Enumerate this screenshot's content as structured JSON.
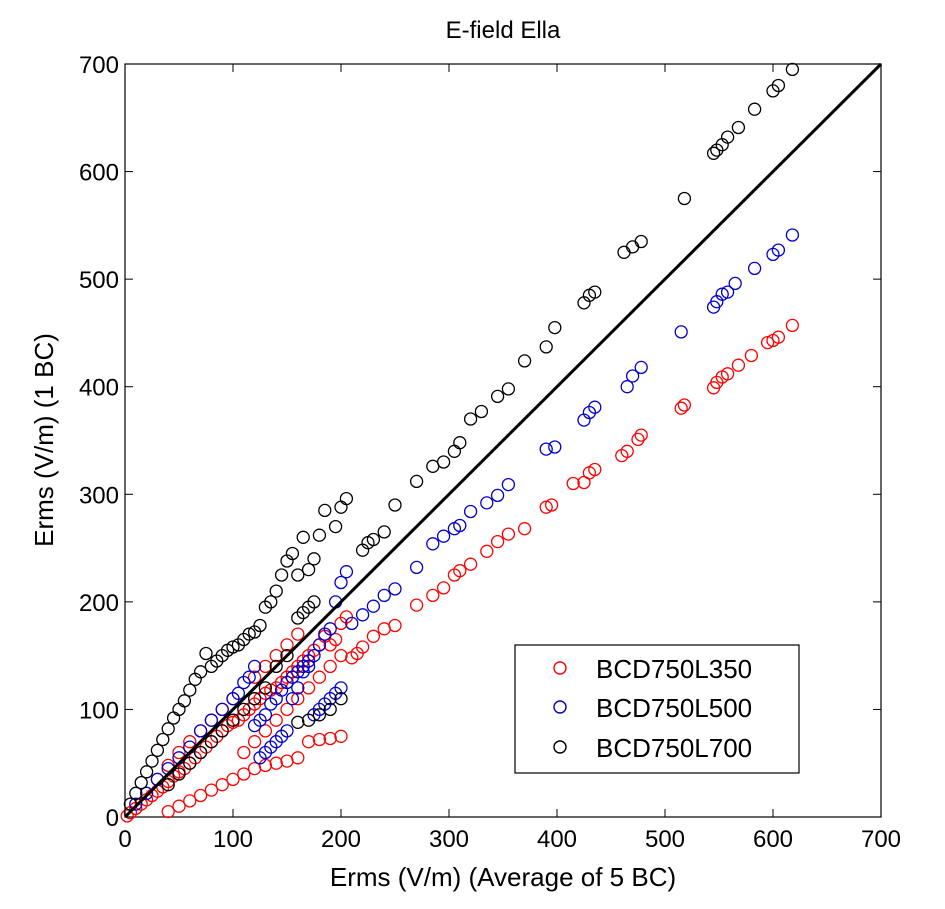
{
  "chart_data": {
    "type": "scatter",
    "title": "E-field Ella",
    "xlabel": "Erms (V/m) (Average of 5 BC)",
    "ylabel": "Erms (V/m) (1 BC)",
    "xlim": [
      0,
      700
    ],
    "ylim": [
      0,
      700
    ],
    "xticks": [
      0,
      100,
      200,
      300,
      400,
      500,
      600,
      700
    ],
    "yticks": [
      0,
      100,
      200,
      300,
      400,
      500,
      600,
      700
    ],
    "grid": false,
    "legend_position": "bottom-right",
    "reference_line": {
      "x": [
        0,
        700
      ],
      "y": [
        0,
        700
      ],
      "color": "#000000"
    },
    "series": [
      {
        "name": "BCD750L350",
        "color": "#ff0000",
        "marker": "open-circle",
        "points": [
          [
            618,
            457
          ],
          [
            605,
            446
          ],
          [
            600,
            443
          ],
          [
            595,
            441
          ],
          [
            580,
            429
          ],
          [
            568,
            420
          ],
          [
            558,
            412
          ],
          [
            553,
            409
          ],
          [
            548,
            404
          ],
          [
            545,
            399
          ],
          [
            518,
            383
          ],
          [
            515,
            380
          ],
          [
            478,
            355
          ],
          [
            475,
            351
          ],
          [
            465,
            340
          ],
          [
            460,
            336
          ],
          [
            435,
            323
          ],
          [
            430,
            320
          ],
          [
            425,
            311
          ],
          [
            415,
            310
          ],
          [
            395,
            290
          ],
          [
            390,
            288
          ],
          [
            370,
            268
          ],
          [
            355,
            263
          ],
          [
            345,
            256
          ],
          [
            335,
            247
          ],
          [
            320,
            235
          ],
          [
            310,
            229
          ],
          [
            305,
            225
          ],
          [
            295,
            213
          ],
          [
            285,
            206
          ],
          [
            270,
            197
          ],
          [
            250,
            178
          ],
          [
            240,
            175
          ],
          [
            230,
            168
          ],
          [
            220,
            158
          ],
          [
            215,
            152
          ],
          [
            210,
            148
          ],
          [
            205,
            186
          ],
          [
            200,
            180
          ],
          [
            195,
            165
          ],
          [
            190,
            160
          ],
          [
            185,
            168
          ],
          [
            180,
            160
          ],
          [
            175,
            155
          ],
          [
            170,
            150
          ],
          [
            165,
            145
          ],
          [
            160,
            140
          ],
          [
            155,
            135
          ],
          [
            150,
            130
          ],
          [
            145,
            125
          ],
          [
            140,
            120
          ],
          [
            135,
            118
          ],
          [
            130,
            115
          ],
          [
            125,
            110
          ],
          [
            120,
            105
          ],
          [
            115,
            100
          ],
          [
            110,
            95
          ],
          [
            105,
            90
          ],
          [
            100,
            88
          ],
          [
            95,
            85
          ],
          [
            90,
            80
          ],
          [
            85,
            75
          ],
          [
            80,
            70
          ],
          [
            75,
            65
          ],
          [
            70,
            60
          ],
          [
            65,
            55
          ],
          [
            60,
            50
          ],
          [
            55,
            45
          ],
          [
            50,
            42
          ],
          [
            45,
            38
          ],
          [
            40,
            33
          ],
          [
            35,
            28
          ],
          [
            30,
            24
          ],
          [
            25,
            20
          ],
          [
            20,
            16
          ],
          [
            15,
            12
          ],
          [
            10,
            8
          ],
          [
            5,
            4
          ],
          [
            2,
            1
          ],
          [
            200,
            75
          ],
          [
            190,
            73
          ],
          [
            180,
            72
          ],
          [
            170,
            70
          ],
          [
            160,
            55
          ],
          [
            150,
            52
          ],
          [
            140,
            50
          ],
          [
            130,
            48
          ],
          [
            120,
            45
          ],
          [
            110,
            40
          ],
          [
            100,
            35
          ],
          [
            90,
            30
          ],
          [
            80,
            25
          ],
          [
            70,
            20
          ],
          [
            60,
            15
          ],
          [
            50,
            10
          ],
          [
            40,
            5
          ],
          [
            120,
            130
          ],
          [
            130,
            140
          ],
          [
            140,
            150
          ],
          [
            150,
            160
          ],
          [
            160,
            170
          ],
          [
            100,
            110
          ],
          [
            90,
            100
          ],
          [
            80,
            90
          ],
          [
            70,
            80
          ],
          [
            60,
            70
          ],
          [
            50,
            60
          ],
          [
            40,
            48
          ],
          [
            30,
            35
          ],
          [
            110,
            60
          ],
          [
            120,
            70
          ],
          [
            130,
            80
          ],
          [
            140,
            90
          ],
          [
            150,
            100
          ],
          [
            160,
            110
          ],
          [
            170,
            120
          ],
          [
            180,
            130
          ],
          [
            190,
            140
          ],
          [
            200,
            150
          ]
        ]
      },
      {
        "name": "BCD750L500",
        "color": "#0000cc",
        "marker": "open-circle",
        "points": [
          [
            618,
            541
          ],
          [
            605,
            527
          ],
          [
            600,
            523
          ],
          [
            583,
            510
          ],
          [
            565,
            496
          ],
          [
            558,
            488
          ],
          [
            553,
            486
          ],
          [
            548,
            479
          ],
          [
            545,
            474
          ],
          [
            515,
            451
          ],
          [
            478,
            418
          ],
          [
            470,
            410
          ],
          [
            465,
            400
          ],
          [
            435,
            381
          ],
          [
            430,
            376
          ],
          [
            425,
            369
          ],
          [
            398,
            344
          ],
          [
            390,
            342
          ],
          [
            355,
            309
          ],
          [
            345,
            299
          ],
          [
            335,
            292
          ],
          [
            320,
            284
          ],
          [
            310,
            271
          ],
          [
            305,
            268
          ],
          [
            295,
            261
          ],
          [
            285,
            254
          ],
          [
            270,
            232
          ],
          [
            250,
            212
          ],
          [
            240,
            206
          ],
          [
            230,
            196
          ],
          [
            220,
            188
          ],
          [
            210,
            180
          ],
          [
            205,
            228
          ],
          [
            200,
            218
          ],
          [
            195,
            200
          ],
          [
            190,
            175
          ],
          [
            185,
            170
          ],
          [
            180,
            160
          ],
          [
            175,
            150
          ],
          [
            170,
            145
          ],
          [
            165,
            140
          ],
          [
            160,
            135
          ],
          [
            155,
            130
          ],
          [
            150,
            125
          ],
          [
            145,
            118
          ],
          [
            140,
            110
          ],
          [
            135,
            105
          ],
          [
            130,
            95
          ],
          [
            125,
            90
          ],
          [
            120,
            85
          ],
          [
            200,
            120
          ],
          [
            195,
            115
          ],
          [
            190,
            110
          ],
          [
            185,
            105
          ],
          [
            180,
            100
          ],
          [
            175,
            95
          ],
          [
            170,
            140
          ],
          [
            165,
            135
          ],
          [
            160,
            120
          ],
          [
            155,
            110
          ],
          [
            150,
            80
          ],
          [
            145,
            75
          ],
          [
            140,
            70
          ],
          [
            135,
            65
          ],
          [
            130,
            60
          ],
          [
            125,
            55
          ],
          [
            120,
            140
          ],
          [
            115,
            130
          ],
          [
            110,
            125
          ],
          [
            105,
            115
          ],
          [
            100,
            110
          ],
          [
            90,
            100
          ],
          [
            80,
            90
          ],
          [
            70,
            80
          ],
          [
            60,
            65
          ],
          [
            50,
            55
          ],
          [
            40,
            45
          ],
          [
            30,
            35
          ],
          [
            20,
            22
          ],
          [
            10,
            12
          ]
        ]
      },
      {
        "name": "BCD750L700",
        "color": "#000000",
        "marker": "open-circle",
        "points": [
          [
            618,
            695
          ],
          [
            605,
            680
          ],
          [
            600,
            675
          ],
          [
            583,
            658
          ],
          [
            568,
            641
          ],
          [
            558,
            632
          ],
          [
            553,
            625
          ],
          [
            548,
            620
          ],
          [
            545,
            617
          ],
          [
            518,
            575
          ],
          [
            478,
            535
          ],
          [
            470,
            530
          ],
          [
            462,
            525
          ],
          [
            435,
            488
          ],
          [
            430,
            485
          ],
          [
            425,
            478
          ],
          [
            398,
            455
          ],
          [
            390,
            437
          ],
          [
            370,
            424
          ],
          [
            355,
            398
          ],
          [
            345,
            391
          ],
          [
            330,
            377
          ],
          [
            320,
            370
          ],
          [
            310,
            348
          ],
          [
            305,
            340
          ],
          [
            295,
            330
          ],
          [
            285,
            326
          ],
          [
            270,
            312
          ],
          [
            250,
            290
          ],
          [
            240,
            265
          ],
          [
            230,
            258
          ],
          [
            225,
            255
          ],
          [
            220,
            248
          ],
          [
            205,
            296
          ],
          [
            200,
            288
          ],
          [
            195,
            270
          ],
          [
            185,
            285
          ],
          [
            180,
            262
          ],
          [
            175,
            240
          ],
          [
            170,
            230
          ],
          [
            165,
            260
          ],
          [
            160,
            225
          ],
          [
            155,
            245
          ],
          [
            150,
            238
          ],
          [
            145,
            225
          ],
          [
            140,
            210
          ],
          [
            135,
            200
          ],
          [
            130,
            195
          ],
          [
            125,
            178
          ],
          [
            120,
            172
          ],
          [
            115,
            170
          ],
          [
            110,
            165
          ],
          [
            105,
            160
          ],
          [
            100,
            158
          ],
          [
            95,
            155
          ],
          [
            90,
            150
          ],
          [
            85,
            145
          ],
          [
            80,
            140
          ],
          [
            75,
            152
          ],
          [
            70,
            135
          ],
          [
            65,
            128
          ],
          [
            60,
            118
          ],
          [
            55,
            108
          ],
          [
            50,
            100
          ],
          [
            45,
            92
          ],
          [
            40,
            82
          ],
          [
            35,
            72
          ],
          [
            30,
            62
          ],
          [
            25,
            52
          ],
          [
            20,
            42
          ],
          [
            15,
            32
          ],
          [
            10,
            22
          ],
          [
            5,
            12
          ],
          [
            200,
            110
          ],
          [
            190,
            100
          ],
          [
            180,
            95
          ],
          [
            170,
            90
          ],
          [
            160,
            88
          ],
          [
            150,
            150
          ],
          [
            140,
            140
          ],
          [
            130,
            120
          ],
          [
            120,
            110
          ],
          [
            110,
            100
          ],
          [
            100,
            90
          ],
          [
            90,
            80
          ],
          [
            80,
            70
          ],
          [
            70,
            60
          ],
          [
            60,
            50
          ],
          [
            50,
            40
          ],
          [
            40,
            30
          ],
          [
            175,
            200
          ],
          [
            170,
            195
          ],
          [
            165,
            190
          ],
          [
            160,
            185
          ]
        ]
      }
    ]
  }
}
